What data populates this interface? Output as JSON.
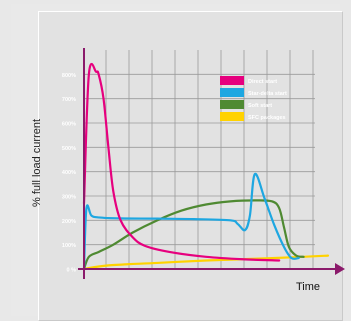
{
  "chart_data": {
    "type": "line",
    "xlabel": "Time",
    "ylabel": "% full load current",
    "yticks": [
      "0 %",
      "100%",
      "200%",
      "300%",
      "400%",
      "500%",
      "600%",
      "700%",
      "800%"
    ],
    "ylim": [
      0,
      900
    ],
    "xlim": [
      0,
      100
    ],
    "grid": true,
    "legend_position": "top-right",
    "series": [
      {
        "name": "Direct start",
        "color": "#e6007e",
        "x": [
          0,
          2,
          5,
          6,
          8,
          10,
          12,
          15,
          20,
          25,
          35,
          50,
          65,
          80
        ],
        "y": [
          270,
          800,
          810,
          800,
          700,
          500,
          320,
          200,
          130,
          95,
          70,
          50,
          40,
          35
        ]
      },
      {
        "name": "Star-delta start",
        "color": "#1ea7e1",
        "x": [
          0,
          1,
          3,
          6,
          15,
          30,
          45,
          60,
          63,
          66,
          68,
          70,
          74,
          78,
          82,
          85,
          88
        ],
        "y": [
          0,
          250,
          220,
          212,
          208,
          207,
          205,
          200,
          185,
          160,
          220,
          390,
          290,
          180,
          90,
          45,
          45
        ]
      },
      {
        "name": "Soft start",
        "color": "#4f8a32",
        "x": [
          0,
          2,
          6,
          12,
          20,
          30,
          40,
          50,
          60,
          70,
          77,
          80,
          82,
          84,
          87,
          90
        ],
        "y": [
          0,
          50,
          70,
          100,
          150,
          200,
          240,
          265,
          278,
          282,
          278,
          250,
          170,
          90,
          55,
          50
        ]
      },
      {
        "name": "SFC packages",
        "color": "#ffd200",
        "x": [
          0,
          10,
          30,
          50,
          70,
          90,
          100
        ],
        "y": [
          0,
          15,
          25,
          35,
          42,
          50,
          55
        ]
      }
    ]
  }
}
